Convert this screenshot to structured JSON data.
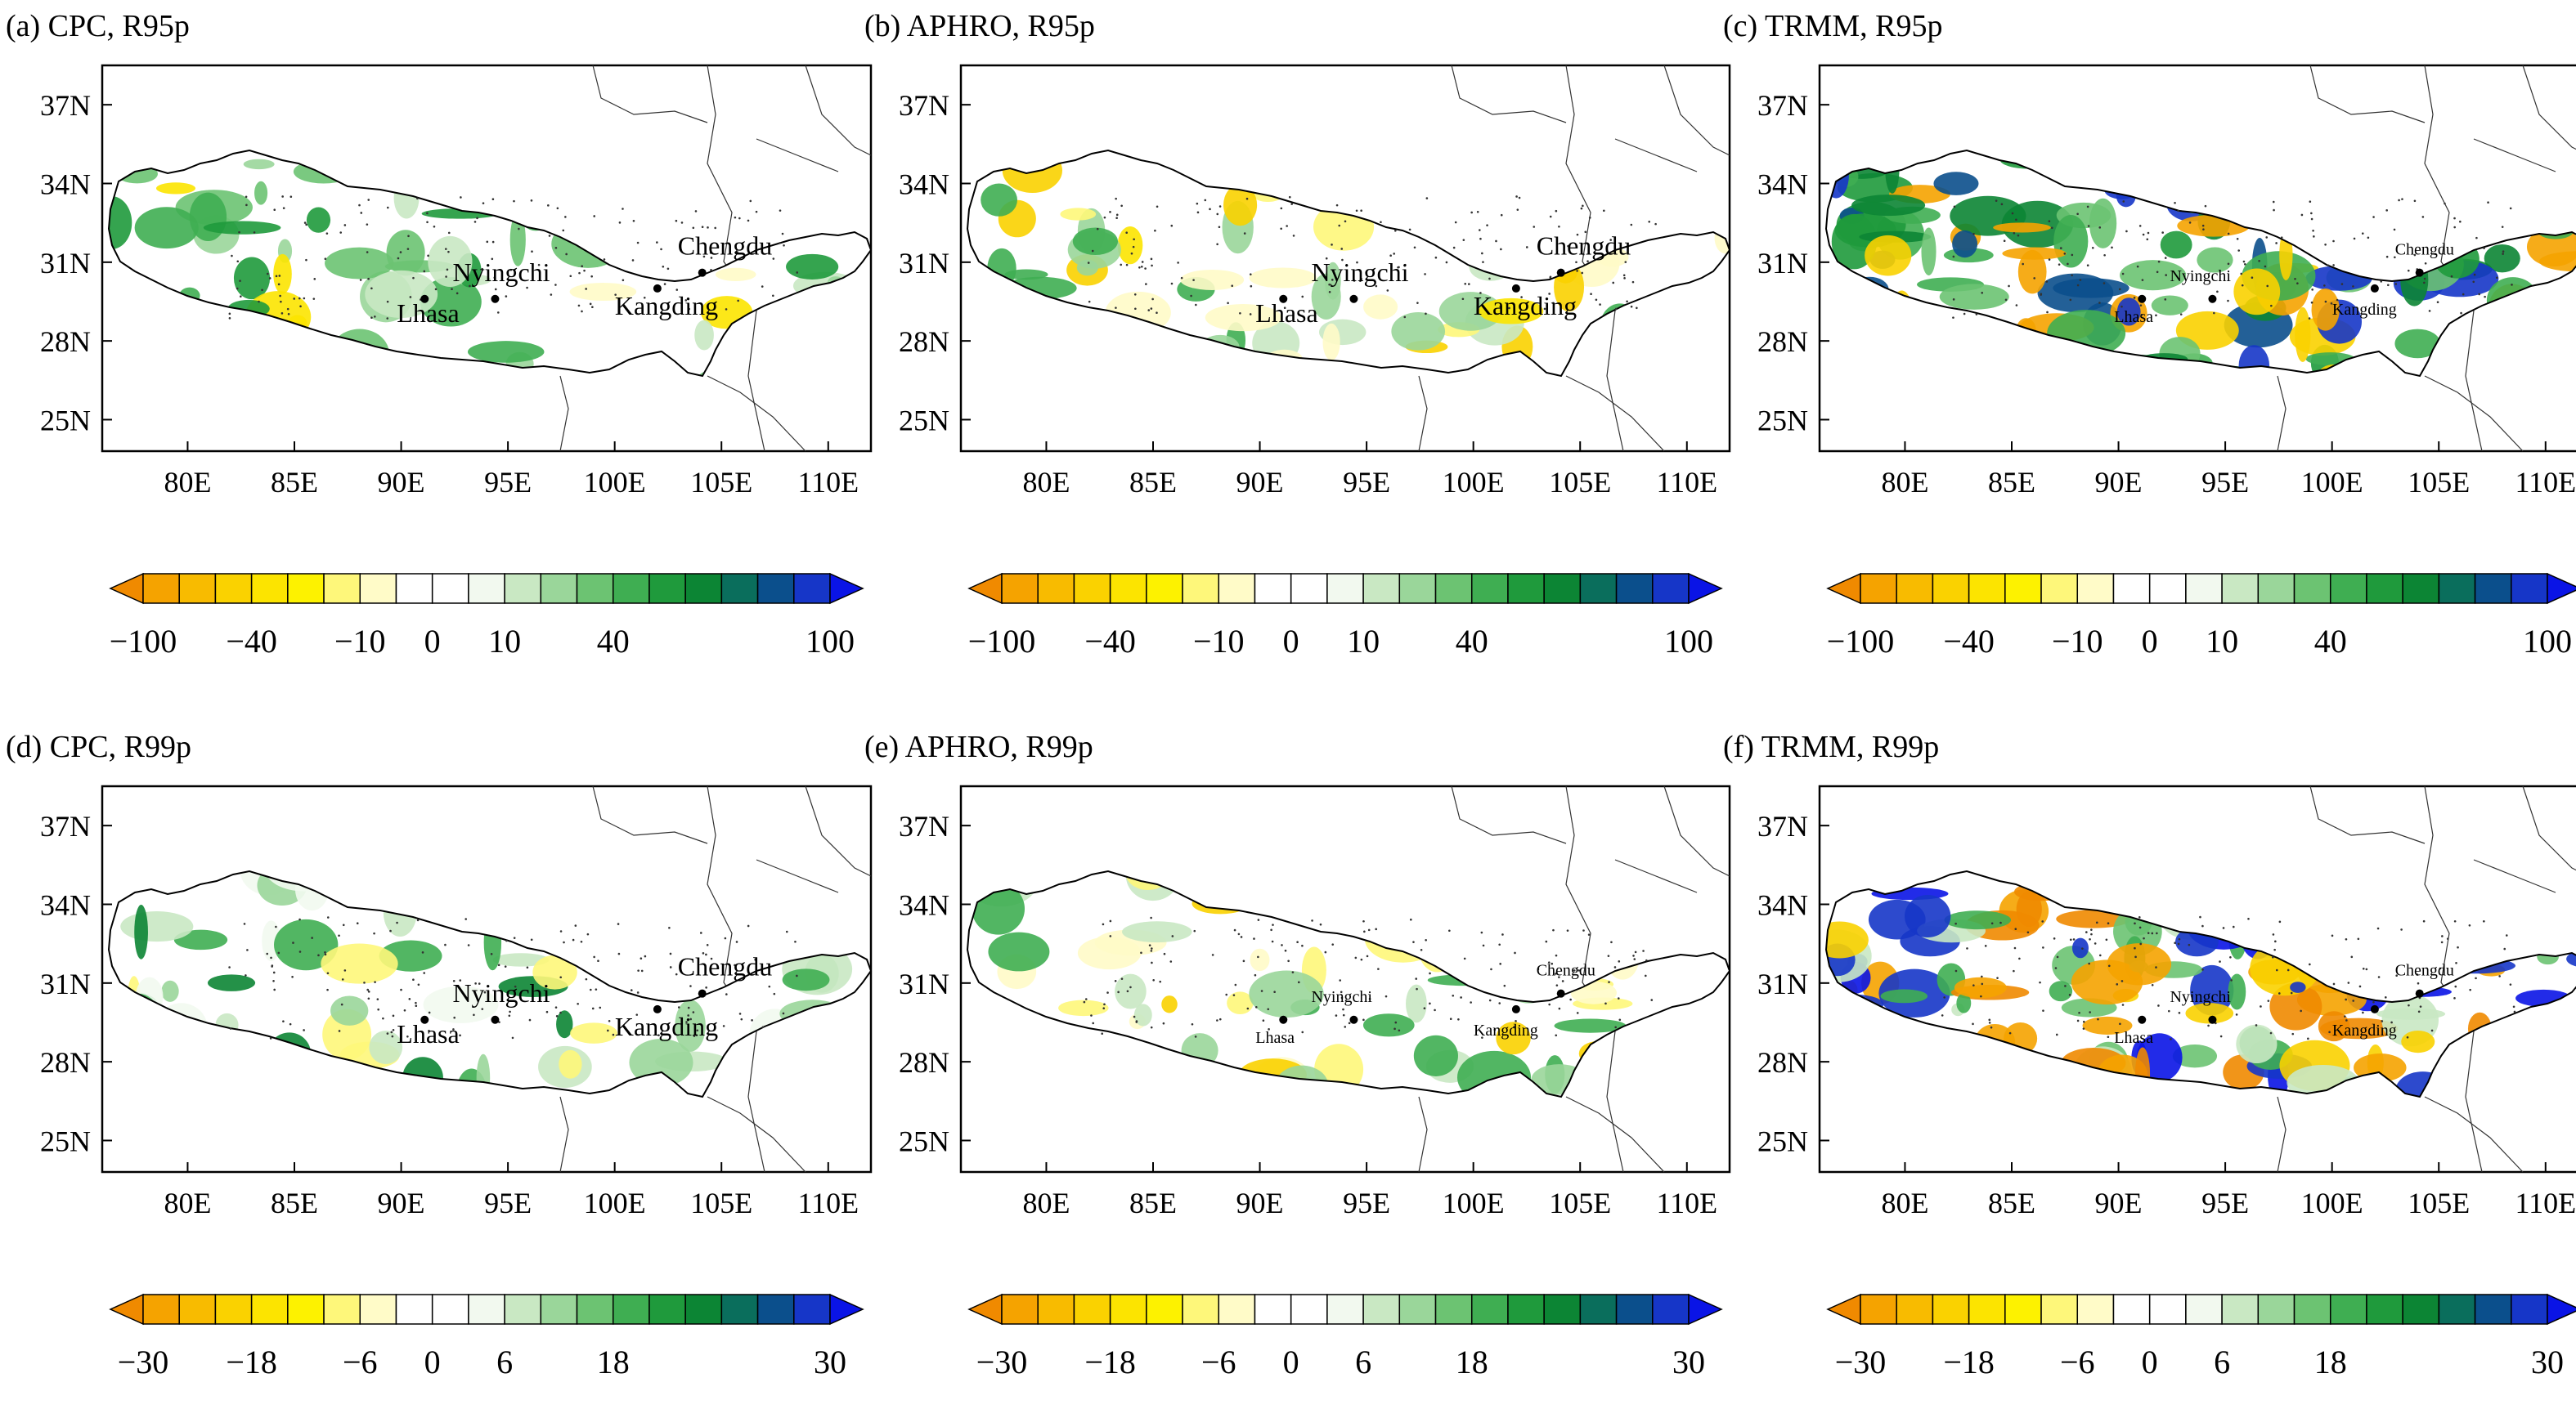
{
  "lon_ticks": [
    "80E",
    "85E",
    "90E",
    "95E",
    "100E",
    "105E",
    "110E"
  ],
  "lat_ticks": [
    "37N",
    "34N",
    "31N",
    "28N",
    "25N"
  ],
  "cities": [
    {
      "name": "Nyingchi",
      "lon": 94.4,
      "lat": 29.6
    },
    {
      "name": "Lhasa",
      "lon": 91.1,
      "lat": 29.6
    },
    {
      "name": "Chengdu",
      "lon": 104.1,
      "lat": 30.6
    },
    {
      "name": "Kangding",
      "lon": 102.0,
      "lat": 30.0
    }
  ],
  "colorbar": {
    "colors": [
      "#f08a00",
      "#f5a300",
      "#f8bb00",
      "#fad200",
      "#fce400",
      "#fdf200",
      "#fef77a",
      "#fffbc8",
      "#ffffff",
      "#ffffff",
      "#f2f9ef",
      "#c9e8c3",
      "#9ad69a",
      "#6cc372",
      "#3fae52",
      "#1f9a3c",
      "#0c8534",
      "#0a6e5c",
      "#0b4f8c",
      "#1636c8",
      "#0a14e6"
    ],
    "r95_ticks": [
      "−100",
      "−40",
      "−10",
      "0",
      "10",
      "40",
      "100"
    ],
    "r99_ticks": [
      "−30",
      "−18",
      "−6",
      "0",
      "6",
      "18",
      "30"
    ]
  },
  "panels": [
    {
      "label": "(a) CPC, R95p",
      "stations": "large",
      "palette": "green_mostly",
      "ticks": "r95_ticks"
    },
    {
      "label": "(b) APHRO, R95p",
      "stations": "large",
      "palette": "mixed",
      "ticks": "r95_ticks"
    },
    {
      "label": "(c) TRMM, R95p",
      "stations": "small",
      "palette": "green_dense",
      "ticks": "r95_ticks"
    },
    {
      "label": "(d) CPC, R99p",
      "stations": "large",
      "palette": "green_sparse",
      "ticks": "r99_ticks"
    },
    {
      "label": "(e) APHRO, R99p",
      "stations": "small",
      "palette": "mixed_sparse",
      "ticks": "r99_ticks"
    },
    {
      "label": "(f) TRMM, R99p",
      "stations": "small",
      "palette": "blue_orange",
      "ticks": "r99_ticks"
    }
  ]
}
